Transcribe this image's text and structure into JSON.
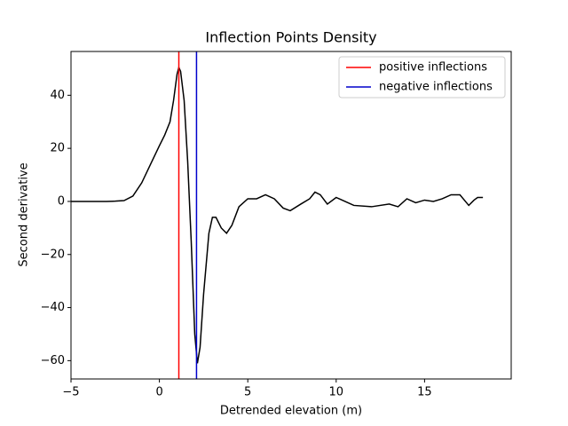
{
  "chart_data": {
    "type": "line",
    "title": "Inflection Points Density",
    "x_label": "Detrended elevation (m)",
    "y_label": "Second derivative",
    "x": [
      -5,
      -4,
      -3,
      -2.5,
      -2,
      -1.5,
      -1,
      -0.5,
      0,
      0.3,
      0.6,
      0.8,
      1.0,
      1.1,
      1.2,
      1.4,
      1.6,
      1.8,
      2.0,
      2.15,
      2.3,
      2.5,
      2.8,
      3.0,
      3.2,
      3.5,
      3.8,
      4.1,
      4.5,
      5,
      5.5,
      6,
      6.5,
      7,
      7.4,
      8,
      8.5,
      8.8,
      9.1,
      9.5,
      10,
      10.5,
      11,
      12,
      13,
      13.5,
      14,
      14.5,
      15,
      15.5,
      16,
      16.5,
      17,
      17.5,
      17.8,
      18,
      18.3
    ],
    "series": [
      {
        "color": "#000000",
        "values": [
          0,
          0,
          0,
          0.1,
          0.3,
          2,
          7,
          14,
          21,
          25,
          30,
          38,
          48,
          50.5,
          49,
          38,
          15,
          -15,
          -50,
          -61,
          -55,
          -35,
          -12,
          -6,
          -6,
          -10,
          -12,
          -9,
          -2,
          1,
          1,
          2.5,
          1,
          -2.5,
          -3.5,
          -1,
          1,
          3.5,
          2.5,
          -1,
          1.5,
          0,
          -1.5,
          -2,
          -1,
          -2,
          1,
          -0.5,
          0.5,
          0,
          1,
          2.5,
          2.5,
          -1.5,
          0.5,
          1.5,
          1.5
        ]
      }
    ],
    "vlines": [
      {
        "name": "positive inflections",
        "color": "#ff0000",
        "x": 1.1
      },
      {
        "name": "negative inflections",
        "color": "#0000cc",
        "x": 2.1
      }
    ],
    "xlim": [
      -5,
      19.9
    ],
    "ylim": [
      -66.9,
      56.5
    ],
    "xticks": [
      {
        "value": -5,
        "label": "−5"
      },
      0,
      5,
      10,
      15
    ],
    "yticks": [
      {
        "value": -60,
        "label": "−60"
      },
      {
        "value": -40,
        "label": "−40"
      },
      {
        "value": -20,
        "label": "−20"
      },
      0,
      20,
      40
    ],
    "legend": "upper right"
  }
}
